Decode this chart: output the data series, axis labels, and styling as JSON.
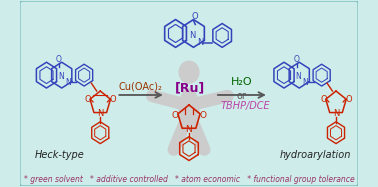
{
  "bg_color": "#ceecea",
  "border_color": "#7abfbf",
  "bottom_text": "* green solvent   * additive controlled   * atom economic   * functional group tolerance",
  "bottom_text_color": "#993366",
  "ru_label": "[Ru]",
  "ru_color": "#880088",
  "cu_label": "Cu(OAc)₂",
  "cu_color": "#993300",
  "h2o_label": "H₂O",
  "h2o_color": "#006600",
  "or_label": "or",
  "or_color": "#555555",
  "tbhp_label": "TBHP/DCE",
  "tbhp_color": "#bb44aa",
  "heck_label": "Heck-type",
  "heck_color": "#222222",
  "hydro_label": "hydroarylation",
  "hydro_color": "#222222",
  "arrow_color": "#555555",
  "blue": "#3344bb",
  "red": "#cc2200",
  "person_color": "#cccccc",
  "figure_width": 3.78,
  "figure_height": 1.87,
  "dpi": 100
}
